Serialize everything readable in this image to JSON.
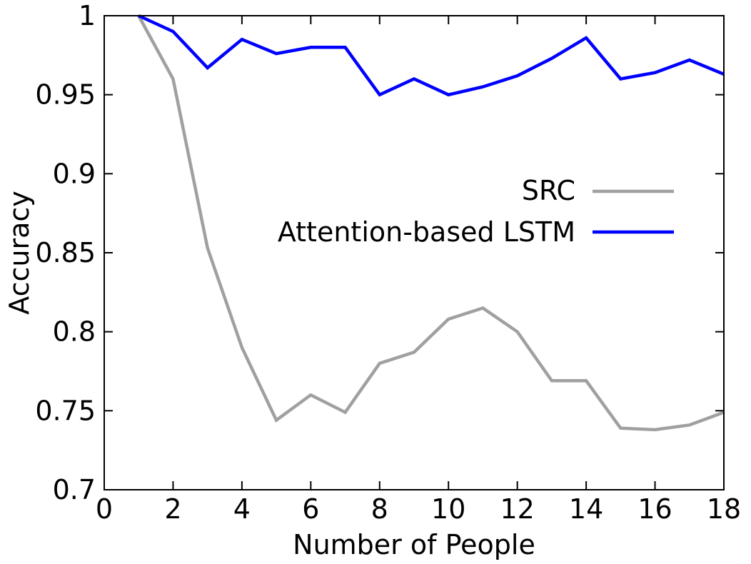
{
  "chart_data": {
    "type": "line",
    "title": "",
    "xlabel": "Number of People",
    "ylabel": "Accuracy",
    "xlim": [
      0,
      18
    ],
    "ylim": [
      0.7,
      1.0
    ],
    "xticks": [
      0,
      2,
      4,
      6,
      8,
      10,
      12,
      14,
      16,
      18
    ],
    "xtick_labels": [
      "0",
      "2",
      "4",
      "6",
      "8",
      "10",
      "12",
      "14",
      "16",
      "18"
    ],
    "yticks": [
      0.7,
      0.75,
      0.8,
      0.85,
      0.9,
      0.95,
      1.0
    ],
    "ytick_labels": [
      "0.7",
      "0.75",
      "0.8",
      "0.85",
      "0.9",
      "0.95",
      "1"
    ],
    "grid": false,
    "legend_position": "center-right",
    "x": [
      1,
      2,
      3,
      4,
      5,
      6,
      7,
      8,
      9,
      10,
      11,
      12,
      13,
      14,
      15,
      16,
      17,
      18
    ],
    "series": [
      {
        "name": "SRC",
        "color": "#a0a0a0",
        "values": [
          1.0,
          0.96,
          0.853,
          0.79,
          0.744,
          0.76,
          0.749,
          0.78,
          0.787,
          0.808,
          0.815,
          0.8,
          0.769,
          0.769,
          0.739,
          0.738,
          0.741,
          0.749
        ]
      },
      {
        "name": "Attention-based LSTM",
        "color": "#0000ff",
        "values": [
          1.0,
          0.99,
          0.967,
          0.985,
          0.976,
          0.98,
          0.98,
          0.95,
          0.96,
          0.95,
          0.955,
          0.962,
          0.973,
          0.986,
          0.96,
          0.964,
          0.972,
          0.963
        ]
      }
    ]
  }
}
